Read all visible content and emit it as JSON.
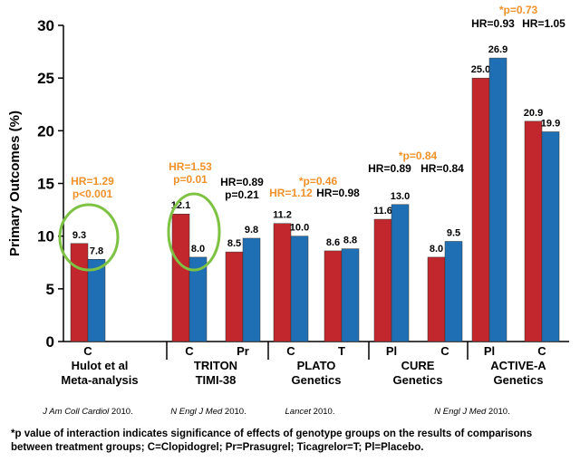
{
  "chart_data": {
    "type": "bar",
    "ylabel": "Primary Outcomes (%)",
    "ylim": [
      0,
      30
    ],
    "yticks": [
      "0",
      "5",
      "10",
      "15",
      "20",
      "25",
      "30"
    ],
    "series_colors": [
      "#c1272d",
      "#1f6fb5"
    ],
    "groups": [
      {
        "name_lines": [
          "Hulot et al",
          "Meta-analysis"
        ],
        "reference": {
          "journal": "J Am Coll Cardiol",
          "year": " 2010."
        },
        "circled": true,
        "annotation": {
          "text": [
            "HR=1.29",
            "p<0.001"
          ],
          "color": "#f0922b"
        },
        "subgroups": [
          {
            "label": "C",
            "values": [
              9.3,
              7.8
            ],
            "value_labels": [
              "9.3",
              "7.8"
            ]
          }
        ]
      },
      {
        "name_lines": [
          "TRITON",
          "TIMI-38"
        ],
        "reference": {
          "journal": "N Engl J Med",
          "year": " 2010."
        },
        "circled": true,
        "annotation": {
          "text": [
            "HR=1.53",
            "p=0.01"
          ],
          "color": "#f0922b"
        },
        "subgroups": [
          {
            "label": "C",
            "values": [
              12.1,
              8.0
            ],
            "value_labels": [
              "12.1",
              "8.0"
            ]
          },
          {
            "label": "Pr",
            "values": [
              8.5,
              9.8
            ],
            "value_labels": [
              "8.5",
              "9.8"
            ],
            "annotation": {
              "text": [
                "HR=0.89",
                "p=0.21"
              ],
              "color": "#000000"
            }
          }
        ]
      },
      {
        "name_lines": [
          "PLATO",
          "Genetics"
        ],
        "reference": {
          "journal": "Lancet",
          "year": " 2010."
        },
        "annotation": {
          "text": [
            "*p=0.46"
          ],
          "color": "#f0922b"
        },
        "subgroups": [
          {
            "label": "C",
            "values": [
              11.2,
              10.0
            ],
            "value_labels": [
              "11.2",
              "10.0"
            ],
            "annotation": {
              "text": [
                "HR=1.12"
              ],
              "color": "#f0922b"
            }
          },
          {
            "label": "T",
            "values": [
              8.6,
              8.8
            ],
            "value_labels": [
              "8.6",
              "8.8"
            ],
            "annotation": {
              "text": [
                "HR=0.98"
              ],
              "color": "#000000"
            }
          }
        ]
      },
      {
        "name_lines": [
          "CURE",
          "Genetics"
        ],
        "reference": {
          "journal": "N Engl J Med",
          "year": " 2010."
        },
        "annotation": {
          "text": [
            "*p=0.84"
          ],
          "color": "#f0922b"
        },
        "subgroups": [
          {
            "label": "Pl",
            "values": [
              11.6,
              13.0
            ],
            "value_labels": [
              "11.6",
              "13.0"
            ],
            "annotation": {
              "text": [
                "HR=0.89"
              ],
              "color": "#000000"
            }
          },
          {
            "label": "C",
            "values": [
              8.0,
              9.5
            ],
            "value_labels": [
              "8.0",
              "9.5"
            ],
            "annotation": {
              "text": [
                "HR=0.84"
              ],
              "color": "#000000"
            }
          }
        ]
      },
      {
        "name_lines": [
          "ACTIVE-A",
          "Genetics"
        ],
        "annotation": {
          "text": [
            "*p=0.73"
          ],
          "color": "#f0922b"
        },
        "subgroups": [
          {
            "label": "Pl",
            "values": [
              25.0,
              26.9
            ],
            "value_labels": [
              "25.0",
              "26.9"
            ],
            "annotation": {
              "text": [
                "HR=0.93"
              ],
              "color": "#000000"
            }
          },
          {
            "label": "C",
            "values": [
              20.9,
              19.9
            ],
            "value_labels": [
              "20.9",
              "19.9"
            ],
            "annotation": {
              "text": [
                "HR=1.05"
              ],
              "color": "#000000"
            }
          }
        ]
      }
    ]
  },
  "footnote": "*p value of interaction indicates significance of effects of genotype groups on the results of comparisons between treatment groups; C=Clopidogrel; Pr=Prasugrel; Ticagrelor=T; Pl=Placebo."
}
